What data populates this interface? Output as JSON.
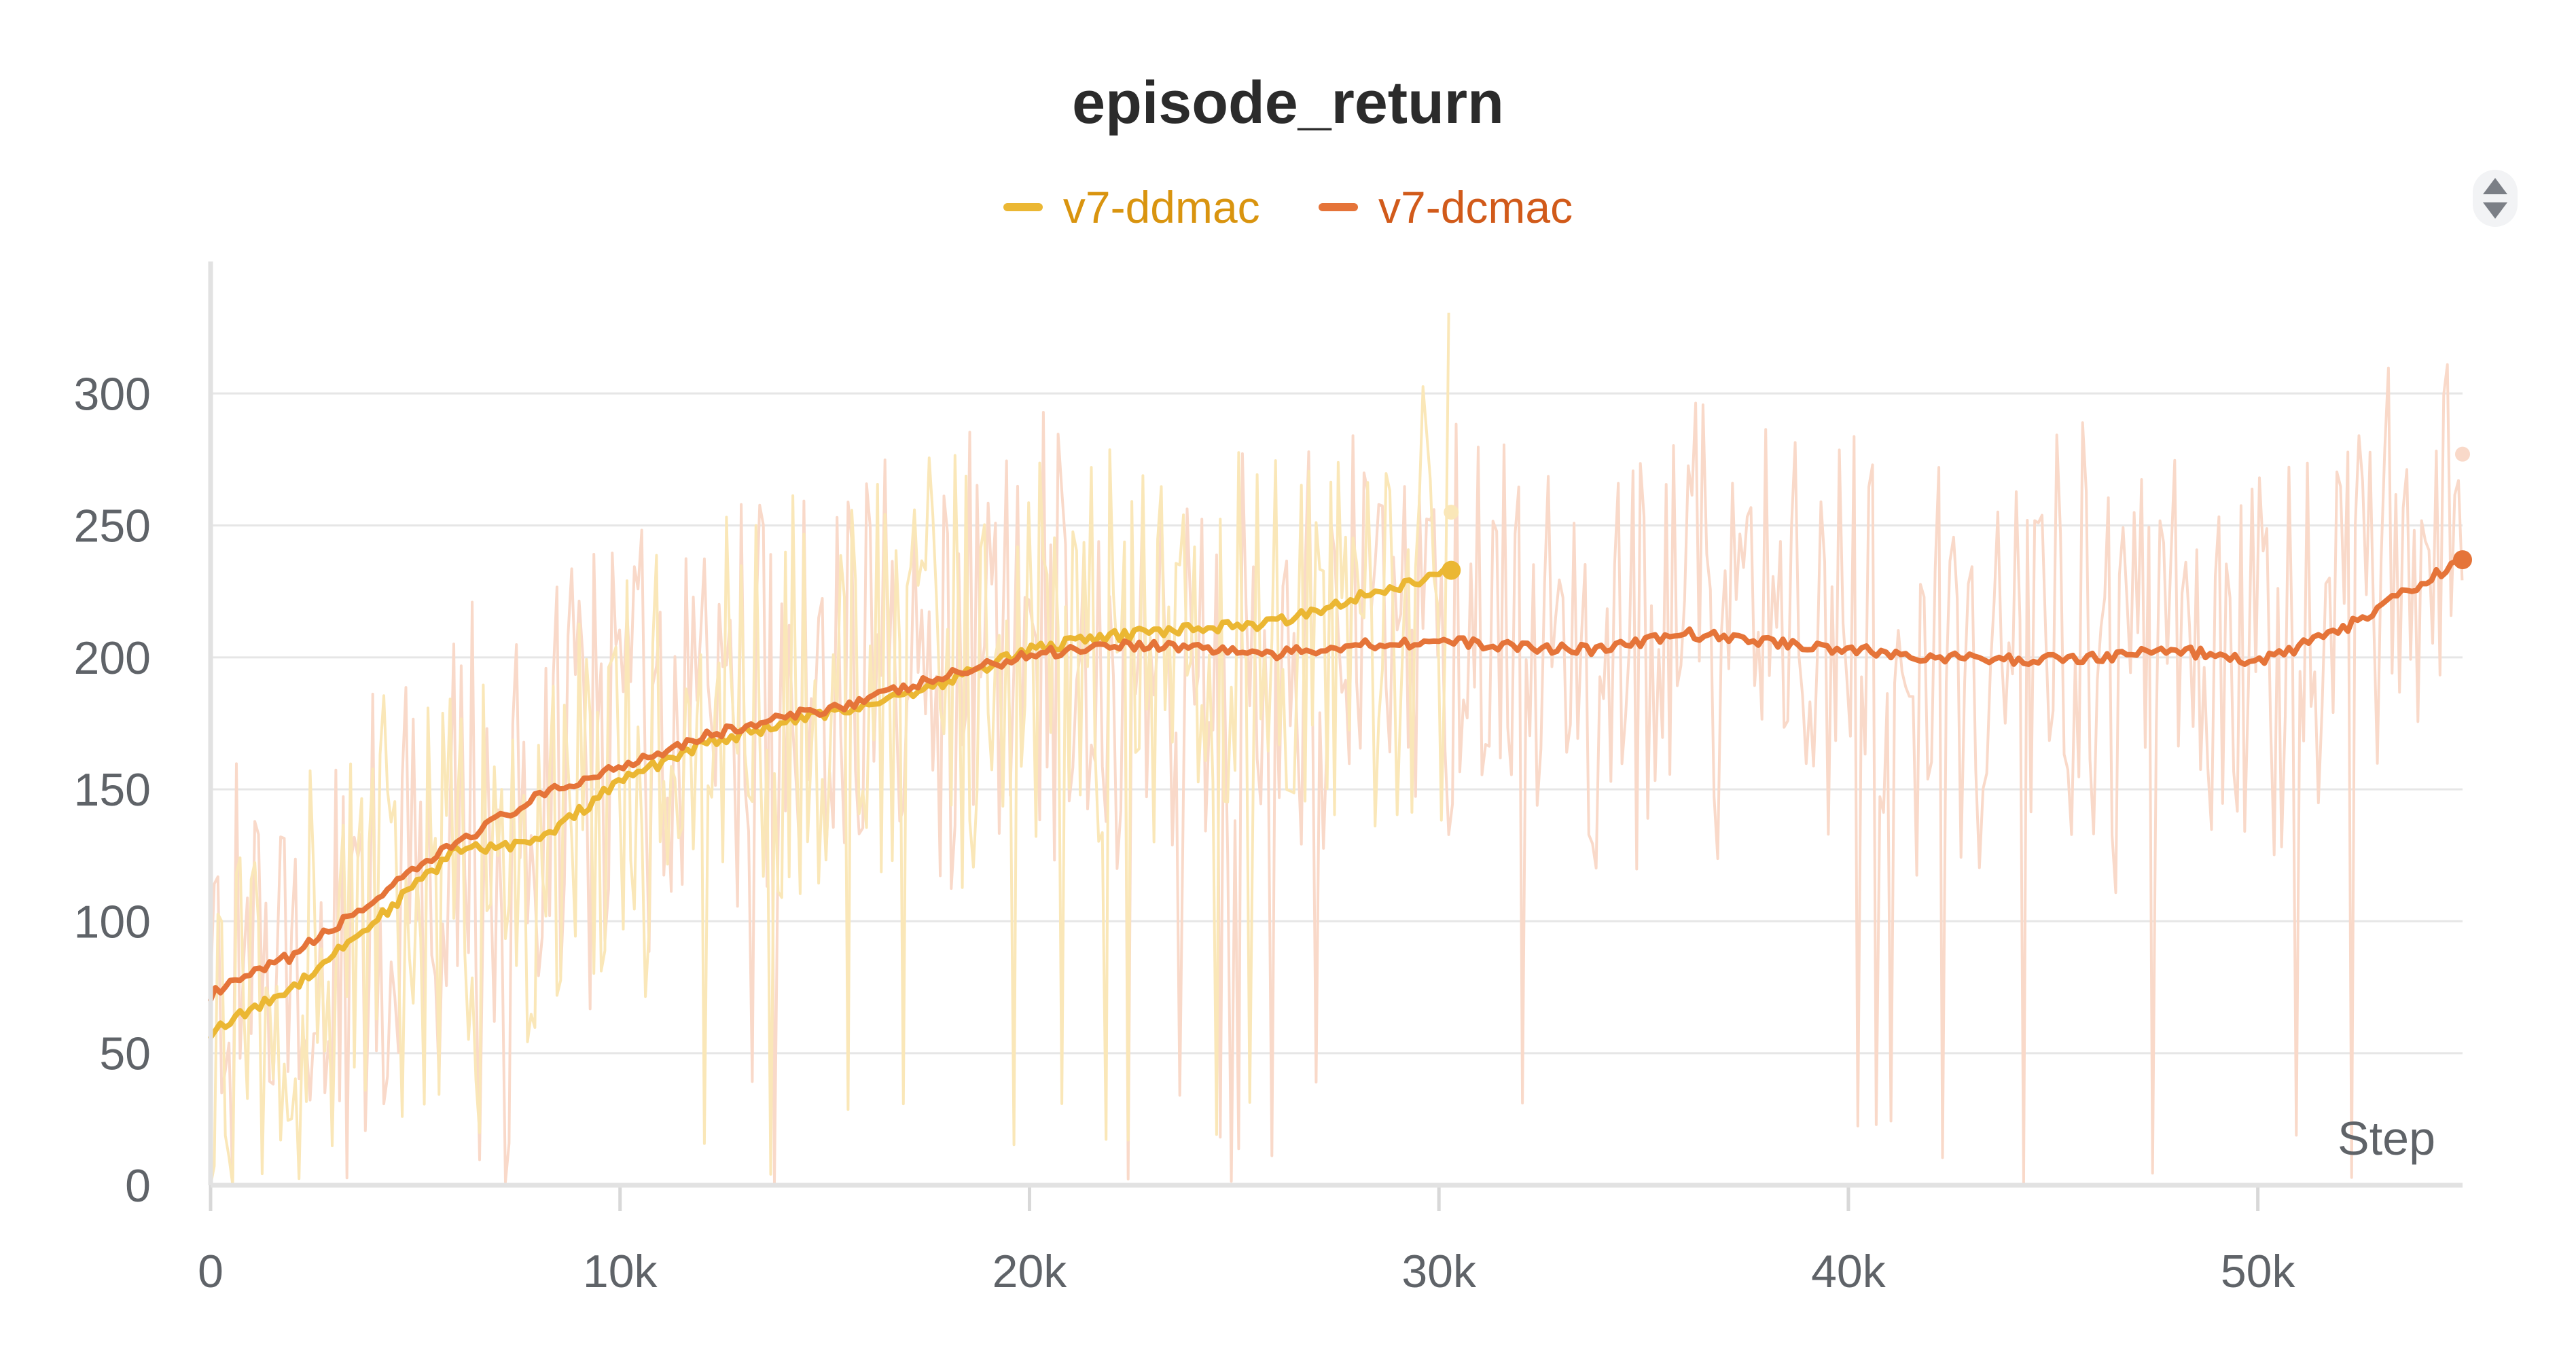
{
  "chart_data": {
    "type": "line",
    "title": "episode_return",
    "xlabel": "Step",
    "ylabel": "",
    "xlim": [
      0,
      55000
    ],
    "ylim": [
      0,
      350
    ],
    "x_ticks": [
      0,
      10000,
      20000,
      30000,
      40000,
      50000
    ],
    "x_tick_labels": [
      "0",
      "10k",
      "20k",
      "30k",
      "40k",
      "50k"
    ],
    "y_ticks": [
      0,
      50,
      100,
      150,
      200,
      250,
      300
    ],
    "y_tick_labels": [
      "0",
      "50",
      "100",
      "150",
      "200",
      "250",
      "300"
    ],
    "grid": true,
    "legend_position": "top-center",
    "series": [
      {
        "name": "v7-ddmac",
        "color": "#ebb733",
        "x": [
          0,
          2000,
          4000,
          6000,
          8000,
          10000,
          12000,
          14000,
          16000,
          18000,
          20000,
          22000,
          24000,
          26000,
          28000,
          30000,
          30300
        ],
        "smoothed": [
          58,
          75,
          100,
          127,
          130,
          153,
          167,
          175,
          182,
          191,
          203,
          208,
          211,
          213,
          223,
          231,
          233
        ],
        "last_raw_value": 255
      },
      {
        "name": "v7-dcmac",
        "color": "#e57439",
        "x": [
          0,
          2000,
          4000,
          6000,
          8000,
          10000,
          12000,
          14000,
          16000,
          18000,
          20000,
          22000,
          24000,
          26000,
          28000,
          30000,
          32000,
          34000,
          36000,
          38000,
          40000,
          42000,
          44000,
          46000,
          48000,
          50000,
          52000,
          54000,
          55000
        ],
        "smoothed": [
          72,
          87,
          108,
          130,
          147,
          159,
          170,
          177,
          184,
          193,
          201,
          205,
          204,
          201,
          205,
          206,
          204,
          203,
          209,
          206,
          203,
          200,
          199,
          200,
          203,
          198,
          210,
          228,
          237
        ],
        "last_raw_value": 277
      }
    ]
  }
}
